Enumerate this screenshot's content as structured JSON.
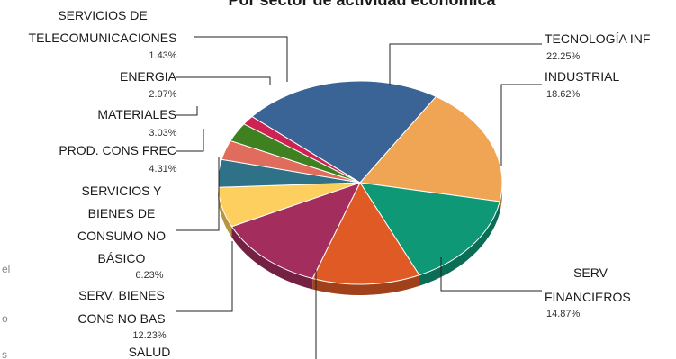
{
  "chart_data": {
    "type": "pie",
    "title": "Por sector de actividad económica",
    "slices": [
      {
        "label": "TECNOLOGÍA INF",
        "value_text": "22.25%",
        "value": 22.25,
        "color": "#3a6496"
      },
      {
        "label": "INDUSTRIAL",
        "value_text": "18.62%",
        "value": 18.62,
        "color": "#efa553"
      },
      {
        "label": "SERV FINANCIEROS",
        "value_text": "14.87%",
        "value": 14.87,
        "color": "#0f9876"
      },
      {
        "label": "SALUD",
        "value_text": "",
        "value": 12.0,
        "color": "#e05a25"
      },
      {
        "label": "SERV. BIENES CONS NO BAS",
        "value_text": "12.23%",
        "value": 12.23,
        "color": "#a32e5e"
      },
      {
        "label": "SERVICIOS Y BIENES DE CONSUMO NO BÁSICO",
        "value_text": "6.23%",
        "value": 6.23,
        "color": "#fdcf5f"
      },
      {
        "label": "PROD. CONS FREC",
        "value_text": "4.31%",
        "value": 4.31,
        "color": "#2f7288"
      },
      {
        "label": "MATERIALES",
        "value_text": "3.03%",
        "value": 3.03,
        "color": "#df6c5c"
      },
      {
        "label": "ENERGIA",
        "value_text": "2.97%",
        "value": 2.97,
        "color": "#3f8121"
      },
      {
        "label": "SERVICIOS DE TELECOMUNICACIONES",
        "value_text": "1.43%",
        "value": 1.43,
        "color": "#cd2253"
      }
    ]
  },
  "side_fragments": [
    "el",
    "o",
    "s"
  ]
}
